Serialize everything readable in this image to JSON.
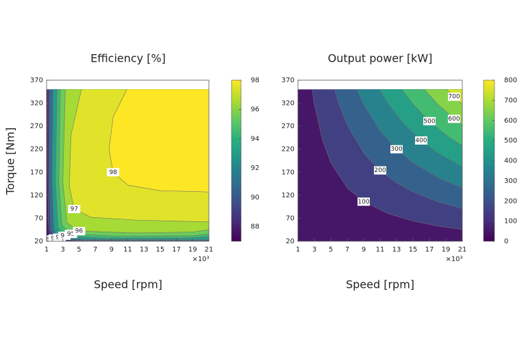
{
  "chart_data": [
    {
      "type": "contour",
      "title": "Efficiency [%]",
      "xlabel": "Speed [rpm]",
      "ylabel": "Torque [Nm]",
      "x_multiplier": "×10³",
      "xlim": [
        1,
        21
      ],
      "xticks": [
        1,
        3,
        5,
        7,
        9,
        11,
        13,
        15,
        17,
        19,
        21
      ],
      "ylim": [
        20,
        370
      ],
      "yticks": [
        20,
        70,
        120,
        170,
        220,
        270,
        320,
        370
      ],
      "data_extent": {
        "x": [
          1,
          21
        ],
        "y": [
          20,
          350
        ]
      },
      "clim": [
        87,
        98
      ],
      "cticks": [
        88,
        90,
        92,
        94,
        96,
        98
      ],
      "colormap": [
        "#440154",
        "#472d7b",
        "#3b528b",
        "#2c728e",
        "#21918c",
        "#28ae80",
        "#5ec962",
        "#addc30",
        "#fde725"
      ],
      "contours": [
        {
          "level": 88,
          "x": [
            1.15,
            1.15,
            1.2,
            1.4,
            3,
            21
          ],
          "y": [
            350,
            200,
            60,
            24,
            21,
            20.5
          ]
        },
        {
          "level": 90,
          "x": [
            1.4,
            1.35,
            1.5,
            2,
            5,
            21
          ],
          "y": [
            350,
            150,
            45,
            26,
            22,
            21.5
          ]
        },
        {
          "level": 92,
          "x": [
            1.8,
            1.7,
            1.9,
            2.6,
            6,
            21
          ],
          "y": [
            350,
            150,
            45,
            28,
            24,
            23
          ]
        },
        {
          "level": 94,
          "x": [
            2.3,
            2.1,
            2.4,
            3.2,
            8,
            18,
            21
          ],
          "y": [
            350,
            150,
            50,
            32,
            27,
            27,
            30
          ]
        },
        {
          "level": 95,
          "x": [
            2.7,
            2.5,
            2.9,
            4,
            10,
            19,
            21
          ],
          "y": [
            350,
            150,
            55,
            36,
            31,
            32,
            36
          ]
        },
        {
          "level": 96,
          "x": [
            3.3,
            3.0,
            3.5,
            5,
            12,
            19,
            21
          ],
          "y": [
            350,
            150,
            60,
            42,
            38,
            40,
            45
          ]
        },
        {
          "level": 97,
          "x": [
            5.3,
            4.0,
            3.8,
            4.4,
            6.5,
            12,
            21
          ],
          "y": [
            350,
            250,
            140,
            90,
            72,
            66,
            62
          ]
        },
        {
          "level": 98,
          "x": [
            10.9,
            9.2,
            8.7,
            9.2,
            11,
            15,
            21
          ],
          "y": [
            350,
            290,
            220,
            170,
            142,
            130,
            127
          ]
        }
      ]
    },
    {
      "type": "contour",
      "title": "Output power [kW]",
      "xlabel": "Speed [rpm]",
      "x_multiplier": "×10³",
      "xlim": [
        1,
        21
      ],
      "xticks": [
        1,
        3,
        5,
        7,
        9,
        11,
        13,
        15,
        17,
        19,
        21
      ],
      "ylim": [
        20,
        370
      ],
      "yticks": [
        20,
        70,
        120,
        170,
        220,
        270,
        320,
        370
      ],
      "data_extent": {
        "x": [
          1,
          21
        ],
        "y": [
          20,
          350
        ]
      },
      "clim": [
        0,
        800
      ],
      "cticks": [
        0,
        100,
        200,
        300,
        400,
        500,
        600,
        700,
        800
      ],
      "colormap": [
        "#440154",
        "#472d7b",
        "#3b528b",
        "#2c728e",
        "#21918c",
        "#28ae80",
        "#5ec962",
        "#addc30",
        "#fde725"
      ],
      "contours": [
        {
          "level": 100,
          "x": [
            2.73,
            3,
            4,
            5,
            7,
            9,
            12,
            15,
            18,
            21
          ],
          "y": [
            350,
            318,
            239,
            191,
            136,
            106,
            80,
            64,
            53,
            45.5
          ]
        },
        {
          "level": 200,
          "x": [
            5.46,
            6,
            7,
            9,
            11,
            13,
            15,
            18,
            21
          ],
          "y": [
            350,
            318,
            273,
            212,
            174,
            147,
            127,
            106,
            91
          ]
        },
        {
          "level": 300,
          "x": [
            8.18,
            9,
            11,
            13,
            15,
            18,
            21
          ],
          "y": [
            350,
            318,
            260,
            220,
            191,
            159,
            136
          ]
        },
        {
          "level": 400,
          "x": [
            10.91,
            12,
            14,
            16,
            18,
            21
          ],
          "y": [
            350,
            318,
            273,
            239,
            212,
            182
          ]
        },
        {
          "level": 500,
          "x": [
            13.64,
            15,
            17,
            19,
            21
          ],
          "y": [
            350,
            318,
            281,
            251,
            227
          ]
        },
        {
          "level": 600,
          "x": [
            16.37,
            18,
            20,
            21
          ],
          "y": [
            350,
            318,
            286,
            273
          ]
        },
        {
          "level": 700,
          "x": [
            19.1,
            20,
            21
          ],
          "y": [
            350,
            334,
            318
          ]
        }
      ]
    }
  ]
}
